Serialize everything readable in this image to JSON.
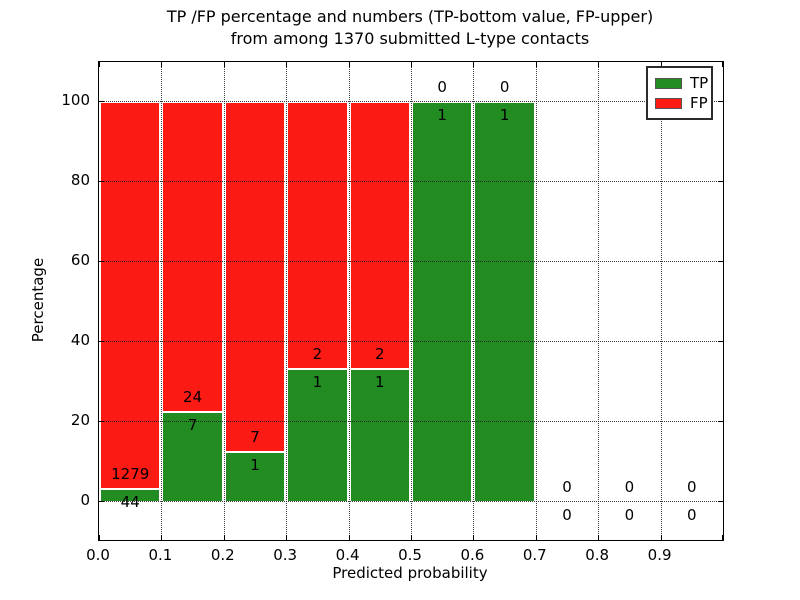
{
  "title": {
    "line1": "TP /FP percentage and numbers (TP-bottom value, FP-upper)",
    "line2": "from among 1370 submitted L-type contacts"
  },
  "axes": {
    "ylabel": "Percentage",
    "xlabel": "Predicted probability",
    "ytick_labels": [
      "0",
      "20",
      "40",
      "60",
      "80",
      "100"
    ],
    "ytick_values": [
      0,
      20,
      40,
      60,
      80,
      100
    ],
    "xtick_labels": [
      "0.0",
      "0.1",
      "0.2",
      "0.3",
      "0.4",
      "0.5",
      "0.6",
      "0.7",
      "0.8",
      "0.9"
    ]
  },
  "legend": {
    "items": [
      {
        "label": "TP",
        "color": "#228b22"
      },
      {
        "label": "FP",
        "color": "#fc1a15"
      }
    ]
  },
  "colors": {
    "tp_green": "#228b22",
    "fp_red": "#fc1a15",
    "bar_edge": "#ffffff",
    "grid": "#1a1a1a",
    "text": "#000000"
  },
  "chart_data": {
    "type": "bar",
    "stacked": true,
    "title": "TP /FP percentage and numbers (TP-bottom value, FP-upper) from among 1370 submitted L-type contacts",
    "xlabel": "Predicted probability",
    "ylabel": "Percentage",
    "xlim": [
      0.0,
      1.0
    ],
    "ylim": [
      -9.75,
      109.5
    ],
    "grid": true,
    "legend_position": "upper right",
    "bin_width": 0.1,
    "categories": [
      "0.0-0.1",
      "0.1-0.2",
      "0.2-0.3",
      "0.3-0.4",
      "0.4-0.5",
      "0.5-0.6",
      "0.6-0.7",
      "0.7-0.8",
      "0.8-0.9",
      "0.9-1.0"
    ],
    "series": [
      {
        "name": "TP",
        "color": "#228b22",
        "values": [
          44,
          7,
          1,
          1,
          1,
          1,
          1,
          0,
          0,
          0
        ]
      },
      {
        "name": "FP",
        "color": "#fc1a15",
        "values": [
          1279,
          24,
          7,
          2,
          2,
          0,
          0,
          0,
          0,
          0
        ]
      }
    ],
    "tp_percent_by_bin": [
      3.3,
      22.6,
      12.5,
      33.3,
      33.3,
      100.0,
      100.0,
      null,
      null,
      null
    ],
    "annotation_note": "FP count printed above segment boundary, TP count below"
  }
}
